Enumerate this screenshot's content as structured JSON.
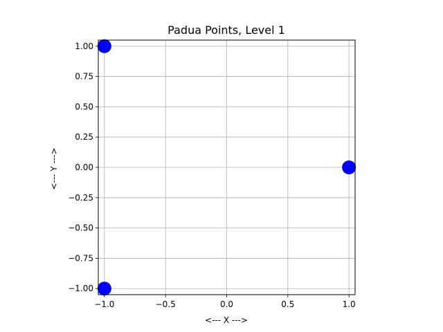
{
  "chart_data": {
    "type": "scatter",
    "title": "Padua Points, Level 1",
    "xlabel": "<--- X --->",
    "ylabel": "<--- Y --->",
    "xlim": [
      -1.05,
      1.05
    ],
    "ylim": [
      -1.05,
      1.05
    ],
    "x_ticks": [
      -1.0,
      -0.5,
      0.0,
      0.5,
      1.0
    ],
    "y_ticks": [
      -1.0,
      -0.75,
      -0.5,
      -0.25,
      0.0,
      0.25,
      0.5,
      0.75,
      1.0
    ],
    "x_tick_labels": [
      "−1.0",
      "−0.5",
      "0.0",
      "0.5",
      "1.0"
    ],
    "y_tick_labels": [
      "−1.00",
      "−0.75",
      "−0.50",
      "−0.25",
      "0.00",
      "0.25",
      "0.50",
      "0.75",
      "1.00"
    ],
    "grid": true,
    "marker_color": "#0000ff",
    "points": [
      {
        "x": -1.0,
        "y": 1.0
      },
      {
        "x": 1.0,
        "y": 0.0
      },
      {
        "x": -1.0,
        "y": -1.0
      }
    ]
  }
}
